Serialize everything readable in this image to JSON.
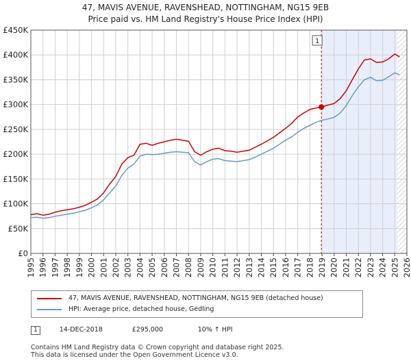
{
  "title_line1": "47, MAVIS AVENUE, RAVENSHEAD, NOTTINGHAM, NG15 9EB",
  "title_line2": "Price paid vs. HM Land Registry's House Price Index (HPI)",
  "chart_data": {
    "type": "line",
    "title": "47, MAVIS AVENUE, RAVENSHEAD, NOTTINGHAM, NG15 9EB — Price paid vs. HM Land Registry's House Price Index (HPI)",
    "xlim": [
      1995,
      2026
    ],
    "ylim": [
      0,
      450000
    ],
    "y_ticks": [
      0,
      50000,
      100000,
      150000,
      200000,
      250000,
      300000,
      350000,
      400000,
      450000
    ],
    "y_tick_labels": [
      "£0",
      "£50K",
      "£100K",
      "£150K",
      "£200K",
      "£250K",
      "£300K",
      "£350K",
      "£400K",
      "£450K"
    ],
    "x_ticks": [
      1995,
      1996,
      1997,
      1998,
      1999,
      2000,
      2001,
      2002,
      2003,
      2004,
      2005,
      2006,
      2007,
      2008,
      2009,
      2010,
      2011,
      2012,
      2013,
      2014,
      2015,
      2016,
      2017,
      2018,
      2019,
      2020,
      2021,
      2022,
      2023,
      2024,
      2025,
      2026
    ],
    "grid": true,
    "shaded_region": [
      2019.0,
      2025.2
    ],
    "hatched_region": [
      2025.2,
      2026
    ],
    "series": [
      {
        "name": "47, MAVIS AVENUE, RAVENSHEAD, NOTTINGHAM, NG15 9EB (detached house)",
        "color": "#cc0000",
        "x": [
          1995,
          1995.5,
          1996,
          1996.5,
          1997,
          1997.5,
          1998,
          1998.5,
          1999,
          1999.5,
          2000,
          2000.5,
          2001,
          2001.5,
          2002,
          2002.5,
          2003,
          2003.5,
          2004,
          2004.5,
          2005,
          2005.5,
          2006,
          2006.5,
          2007,
          2007.5,
          2008,
          2008.5,
          2009,
          2009.5,
          2010,
          2010.5,
          2011,
          2011.5,
          2012,
          2012.5,
          2013,
          2013.5,
          2014,
          2014.5,
          2015,
          2015.5,
          2016,
          2016.5,
          2017,
          2017.5,
          2018,
          2018.5,
          2018.95,
          2019.5,
          2020,
          2020.5,
          2021,
          2021.5,
          2022,
          2022.5,
          2023,
          2023.5,
          2024,
          2024.5,
          2025,
          2025.4
        ],
        "values": [
          78000,
          80000,
          77000,
          79000,
          83000,
          86000,
          88000,
          90000,
          93000,
          97000,
          103000,
          110000,
          122000,
          140000,
          155000,
          180000,
          193000,
          198000,
          220000,
          222000,
          218000,
          222000,
          225000,
          228000,
          230000,
          228000,
          226000,
          205000,
          198000,
          205000,
          210000,
          212000,
          207000,
          206000,
          204000,
          206000,
          208000,
          214000,
          220000,
          227000,
          234000,
          243000,
          252000,
          262000,
          275000,
          283000,
          290000,
          293000,
          295000,
          299000,
          302000,
          312000,
          328000,
          350000,
          372000,
          390000,
          392000,
          385000,
          386000,
          392000,
          402000,
          396000
        ]
      },
      {
        "name": "HPI: Average price, detached house, Gedling",
        "color": "#6699cc",
        "x": [
          1995,
          1995.5,
          1996,
          1996.5,
          1997,
          1997.5,
          1998,
          1998.5,
          1999,
          1999.5,
          2000,
          2000.5,
          2001,
          2001.5,
          2002,
          2002.5,
          2003,
          2003.5,
          2004,
          2004.5,
          2005,
          2005.5,
          2006,
          2006.5,
          2007,
          2007.5,
          2008,
          2008.5,
          2009,
          2009.5,
          2010,
          2010.5,
          2011,
          2011.5,
          2012,
          2012.5,
          2013,
          2013.5,
          2014,
          2014.5,
          2015,
          2015.5,
          2016,
          2016.5,
          2017,
          2017.5,
          2018,
          2018.5,
          2018.95,
          2019.5,
          2020,
          2020.5,
          2021,
          2021.5,
          2022,
          2022.5,
          2023,
          2023.5,
          2024,
          2024.5,
          2025,
          2025.4
        ],
        "values": [
          72000,
          73000,
          71000,
          72000,
          75000,
          77000,
          79000,
          81000,
          84000,
          87000,
          92000,
          98000,
          108000,
          122000,
          136000,
          157000,
          172000,
          180000,
          196000,
          200000,
          199000,
          200000,
          202000,
          204000,
          205000,
          204000,
          203000,
          185000,
          178000,
          185000,
          190000,
          191000,
          187000,
          186000,
          185000,
          187000,
          189000,
          194000,
          200000,
          206000,
          212000,
          220000,
          228000,
          235000,
          244000,
          252000,
          258000,
          264000,
          268000,
          271000,
          274000,
          283000,
          298000,
          318000,
          336000,
          350000,
          355000,
          348000,
          349000,
          356000,
          364000,
          360000
        ]
      }
    ],
    "sales": [
      {
        "marker": "1",
        "date": "14-DEC-2018",
        "x": 2018.95,
        "price": 295000,
        "price_label": "£295,000",
        "hpi_delta": "10% ↑ HPI"
      }
    ]
  },
  "legend": {
    "property_label": "47, MAVIS AVENUE, RAVENSHEAD, NOTTINGHAM, NG15 9EB (detached house)",
    "hpi_label": "HPI: Average price, detached house, Gedling"
  },
  "sale_table": {
    "marker": "1",
    "date": "14-DEC-2018",
    "price": "£295,000",
    "delta": "10% ↑ HPI"
  },
  "footer": {
    "line1": "Contains HM Land Registry data © Crown copyright and database right 2025.",
    "line2": "This data is licensed under the Open Government Licence v3.0."
  },
  "colors": {
    "property": "#cc0000",
    "hpi": "#6699cc",
    "shade": "#e8eefa",
    "grid": "#d0d0d0"
  }
}
